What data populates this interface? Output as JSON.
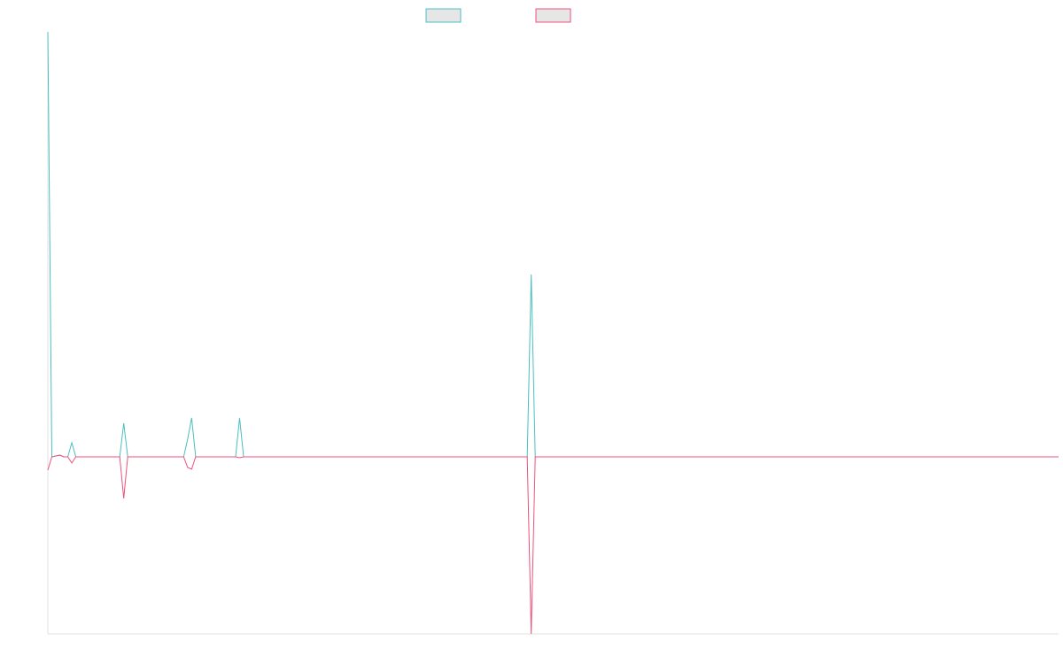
{
  "chart_data": {
    "type": "line",
    "x": [
      0,
      1,
      3,
      4,
      5,
      6,
      7,
      18,
      19,
      20,
      34,
      35,
      36,
      37,
      47,
      48,
      49,
      120,
      121,
      122,
      253
    ],
    "xlim": [
      0,
      253
    ],
    "ylim": [
      -100,
      240
    ],
    "series": [
      {
        "color": "#4bbfbf",
        "values": [
          240,
          0,
          1,
          0,
          0,
          8,
          0,
          0,
          19,
          0,
          0,
          10,
          22,
          0,
          0,
          22,
          0,
          0,
          103,
          0,
          0
        ]
      },
      {
        "color": "#f0507a",
        "values": [
          -7.5,
          0,
          1,
          0,
          0,
          -3.5,
          0,
          0,
          -23.5,
          0,
          0,
          -6,
          -7,
          0,
          0,
          -0.5,
          0,
          0,
          -100,
          0,
          0
        ]
      }
    ]
  }
}
